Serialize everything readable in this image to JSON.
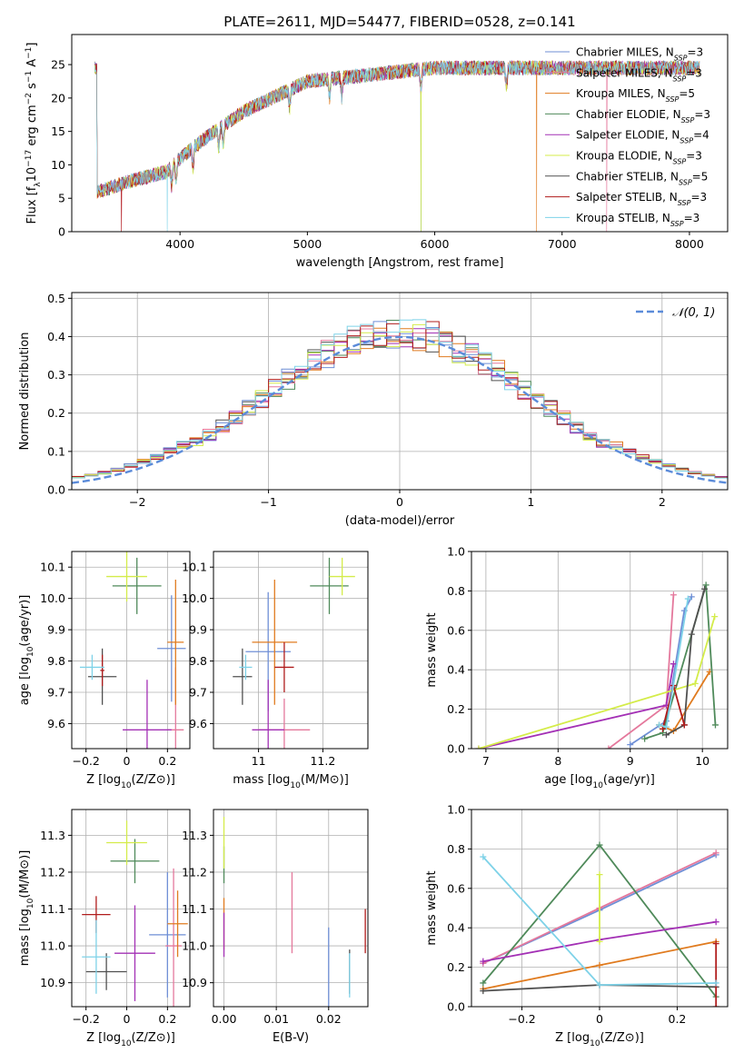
{
  "figure_title": "PLATE=2611, MJD=54477, FIBERID=0528, z=0.141",
  "models": [
    {
      "name": "Chabrier MILES",
      "nssp": "3",
      "color": "#6f8fd6"
    },
    {
      "name": "Salpeter MILES",
      "nssp": "3",
      "color": "#e4789c"
    },
    {
      "name": "Kroupa MILES",
      "nssp": "5",
      "color": "#e07b1f"
    },
    {
      "name": "Chabrier ELODIE",
      "nssp": "3",
      "color": "#4f8a5a"
    },
    {
      "name": "Salpeter ELODIE",
      "nssp": "4",
      "color": "#a330b5"
    },
    {
      "name": "Kroupa ELODIE",
      "nssp": "3",
      "color": "#d4ec4a"
    },
    {
      "name": "Chabrier STELIB",
      "nssp": "5",
      "color": "#505050"
    },
    {
      "name": "Salpeter STELIB",
      "nssp": "3",
      "color": "#b01c1c"
    },
    {
      "name": "Kroupa STELIB",
      "nssp": "3",
      "color": "#7ed2e8"
    }
  ],
  "chart_data": [
    {
      "id": "spectrum",
      "type": "line",
      "xlabel": "wavelength [Angstrom, rest frame]",
      "ylabel": "Flux [f_λ10^-17 erg cm^-2 s^-1 A^-1]",
      "xlim": [
        3150,
        8300
      ],
      "ylim": [
        0,
        29.5
      ],
      "xticks": [
        4000,
        5000,
        6000,
        7000,
        8000
      ],
      "yticks": [
        0,
        5,
        10,
        15,
        20,
        25
      ],
      "grid": false,
      "legend": "top-right",
      "continuum": {
        "x": [
          3350,
          3600,
          3900,
          4000,
          4200,
          4500,
          5000,
          5500,
          6000,
          6500,
          7000,
          7500,
          8000,
          8100
        ],
        "y": [
          6,
          7.5,
          9,
          11,
          14,
          18,
          22.5,
          23.5,
          24.5,
          24.5,
          24.5,
          24.5,
          24.5,
          24.5
        ]
      }
    },
    {
      "id": "residual-histogram",
      "type": "step",
      "xlabel": "(data-model)/error",
      "ylabel": "Normed distribution",
      "xlim": [
        -2.5,
        2.5
      ],
      "ylim": [
        0,
        0.515
      ],
      "xticks": [
        -2,
        -1,
        0,
        1,
        2
      ],
      "yticks": [
        0.0,
        0.1,
        0.2,
        0.3,
        0.4,
        0.5
      ],
      "grid": true,
      "legend": "top-right",
      "reference": {
        "label": "𝒩(0, 1)",
        "color": "#5b8bd9",
        "mean": 0,
        "sigma": 1
      },
      "bin_width": 0.1
    },
    {
      "id": "age-vs-Z",
      "type": "errorbar",
      "xlabel": "Z [log10(Z/Z⊙)]",
      "ylabel": "age  [log10(age/yr)]",
      "xlim": [
        -0.27,
        0.31
      ],
      "ylim": [
        9.52,
        10.15
      ],
      "xticks": [
        -0.2,
        0.0,
        0.2
      ],
      "yticks": [
        9.6,
        9.7,
        9.8,
        9.9,
        10.0,
        10.1
      ],
      "grid": true,
      "points": [
        {
          "m": 0,
          "x": 0.22,
          "y": 9.84,
          "xerr": 0.07,
          "yerr": 0.17
        },
        {
          "m": 1,
          "x": 0.24,
          "y": 9.58,
          "xerr": 0.04,
          "yerr": 0.2
        },
        {
          "m": 2,
          "x": 0.24,
          "y": 9.86,
          "xerr": 0.04,
          "yerr": 0.2
        },
        {
          "m": 3,
          "x": 0.05,
          "y": 10.04,
          "xerr": 0.12,
          "yerr": 0.09
        },
        {
          "m": 4,
          "x": 0.1,
          "y": 9.58,
          "xerr": 0.12,
          "yerr": 0.16
        },
        {
          "m": 5,
          "x": 0.0,
          "y": 10.07,
          "xerr": 0.1,
          "yerr": 0.08
        },
        {
          "m": 6,
          "x": -0.12,
          "y": 9.75,
          "xerr": 0.07,
          "yerr": 0.09
        },
        {
          "m": 7,
          "x": -0.12,
          "y": 9.77,
          "xerr": 0.01,
          "yerr": 0.05
        },
        {
          "m": 8,
          "x": -0.17,
          "y": 9.78,
          "xerr": 0.06,
          "yerr": 0.04
        }
      ]
    },
    {
      "id": "age-vs-mass",
      "type": "errorbar",
      "xlabel": "mass [log10(M/M⊙)]",
      "ylabel": "",
      "xlim": [
        10.86,
        11.34
      ],
      "ylim": [
        9.52,
        10.15
      ],
      "xticks": [
        11.0,
        11.2
      ],
      "yticks": [
        9.6,
        9.7,
        9.8,
        9.9,
        10.0,
        10.1
      ],
      "grid": true,
      "points": [
        {
          "m": 0,
          "x": 11.03,
          "y": 9.83,
          "xerr": 0.07,
          "yerr": 0.19
        },
        {
          "m": 1,
          "x": 11.08,
          "y": 9.58,
          "xerr": 0.08,
          "yerr": 0.1
        },
        {
          "m": 2,
          "x": 11.05,
          "y": 9.86,
          "xerr": 0.07,
          "yerr": 0.2
        },
        {
          "m": 3,
          "x": 11.22,
          "y": 10.04,
          "xerr": 0.06,
          "yerr": 0.09
        },
        {
          "m": 4,
          "x": 11.03,
          "y": 9.58,
          "xerr": 0.05,
          "yerr": 0.16
        },
        {
          "m": 5,
          "x": 11.26,
          "y": 10.07,
          "xerr": 0.04,
          "yerr": 0.06
        },
        {
          "m": 6,
          "x": 10.95,
          "y": 9.75,
          "xerr": 0.03,
          "yerr": 0.09
        },
        {
          "m": 7,
          "x": 11.08,
          "y": 9.78,
          "xerr": 0.03,
          "yerr": 0.08
        },
        {
          "m": 8,
          "x": 10.96,
          "y": 9.78,
          "xerr": 0.02,
          "yerr": 0.04
        }
      ]
    },
    {
      "id": "mass-weight-vs-age",
      "type": "line",
      "xlabel": "age  [log10(age/yr)]",
      "ylabel": "mass weight",
      "xlim": [
        6.8,
        10.35
      ],
      "ylim": [
        0,
        1.0
      ],
      "xticks": [
        7,
        8,
        9,
        10
      ],
      "yticks": [
        0.0,
        0.2,
        0.4,
        0.6,
        0.8,
        1.0
      ],
      "grid": true,
      "series": [
        {
          "m": 0,
          "x": [
            9.0,
            9.5,
            9.75,
            9.85
          ],
          "y": [
            0.02,
            0.14,
            0.7,
            0.77
          ]
        },
        {
          "m": 1,
          "x": [
            8.7,
            9.5,
            9.6
          ],
          "y": [
            0.0,
            0.22,
            0.78
          ]
        },
        {
          "m": 2,
          "x": [
            9.4,
            9.6,
            10.1
          ],
          "y": [
            0.12,
            0.09,
            0.39
          ]
        },
        {
          "m": 3,
          "x": [
            9.2,
            9.45,
            10.05,
            10.18
          ],
          "y": [
            0.05,
            0.08,
            0.83,
            0.12
          ]
        },
        {
          "m": 4,
          "x": [
            6.9,
            9.5,
            9.6
          ],
          "y": [
            0.0,
            0.22,
            0.43
          ]
        },
        {
          "m": 5,
          "x": [
            6.9,
            9.9,
            10.17
          ],
          "y": [
            0.0,
            0.33,
            0.67
          ]
        },
        {
          "m": 6,
          "x": [
            9.5,
            9.75,
            9.85,
            10.03
          ],
          "y": [
            0.07,
            0.12,
            0.58,
            0.81
          ]
        },
        {
          "m": 7,
          "x": [
            9.45,
            9.6,
            9.75
          ],
          "y": [
            0.1,
            0.32,
            0.12
          ]
        },
        {
          "m": 8,
          "x": [
            9.4,
            9.5,
            9.8
          ],
          "y": [
            0.12,
            0.11,
            0.76
          ]
        }
      ]
    },
    {
      "id": "mass-vs-Z",
      "type": "errorbar",
      "xlabel": "Z [log10(Z/Z⊙)]",
      "ylabel": "mass [log10(M/M⊙)]",
      "xlim": [
        -0.27,
        0.31
      ],
      "ylim": [
        10.835,
        11.37
      ],
      "xticks": [
        -0.2,
        0.0,
        0.2
      ],
      "yticks": [
        10.9,
        11.0,
        11.1,
        11.2,
        11.3
      ],
      "grid": true,
      "points": [
        {
          "m": 0,
          "x": 0.2,
          "y": 11.03,
          "xerr": 0.09,
          "yerr": 0.17
        },
        {
          "m": 1,
          "x": 0.23,
          "y": 11.0,
          "xerr": 0.04,
          "yerr": 0.21
        },
        {
          "m": 2,
          "x": 0.25,
          "y": 11.06,
          "xerr": 0.05,
          "yerr": 0.09
        },
        {
          "m": 3,
          "x": 0.04,
          "y": 11.23,
          "xerr": 0.12,
          "yerr": 0.06
        },
        {
          "m": 4,
          "x": 0.04,
          "y": 10.98,
          "xerr": 0.1,
          "yerr": 0.13
        },
        {
          "m": 5,
          "x": 0.0,
          "y": 11.28,
          "xerr": 0.1,
          "yerr": 0.06
        },
        {
          "m": 6,
          "x": -0.1,
          "y": 10.93,
          "xerr": 0.1,
          "yerr": 0.05
        },
        {
          "m": 7,
          "x": -0.15,
          "y": 11.085,
          "xerr": 0.07,
          "yerr": 0.05
        },
        {
          "m": 8,
          "x": -0.15,
          "y": 10.97,
          "xerr": 0.07,
          "yerr": 0.1
        }
      ]
    },
    {
      "id": "mass-vs-EBV",
      "type": "errorbar",
      "xlabel": "E(B-V)",
      "ylabel": "",
      "xlim": [
        -0.002,
        0.0275
      ],
      "ylim": [
        10.835,
        11.37
      ],
      "xticks": [
        0.0,
        0.01,
        0.02
      ],
      "xtick_labels": [
        "0.00",
        "0.01",
        "0.02"
      ],
      "yticks": [
        10.9,
        11.0,
        11.1,
        11.2,
        11.3
      ],
      "grid": true,
      "points": [
        {
          "m": 0,
          "x": 0.02,
          "y": 10.93,
          "xerr": 0,
          "yerr": 0.12
        },
        {
          "m": 1,
          "x": 0.013,
          "y": 11.09,
          "xerr": 0,
          "yerr": 0.11
        },
        {
          "m": 2,
          "x": 0.0,
          "y": 11.06,
          "xerr": 0,
          "yerr": 0.07
        },
        {
          "m": 3,
          "x": 0.0,
          "y": 11.22,
          "xerr": 0,
          "yerr": 0.05
        },
        {
          "m": 4,
          "x": 0.0,
          "y": 11.03,
          "xerr": 0,
          "yerr": 0.06
        },
        {
          "m": 5,
          "x": 0.0,
          "y": 11.28,
          "xerr": 0,
          "yerr": 0.07
        },
        {
          "m": 6,
          "x": 0.024,
          "y": 10.93,
          "xerr": 0,
          "yerr": 0.06
        },
        {
          "m": 7,
          "x": 0.027,
          "y": 11.04,
          "xerr": 0,
          "yerr": 0.06
        },
        {
          "m": 8,
          "x": 0.024,
          "y": 10.92,
          "xerr": 0,
          "yerr": 0.06
        }
      ]
    },
    {
      "id": "mass-weight-vs-Z",
      "type": "line",
      "xlabel": "Z [log10(Z/Z⊙)]",
      "ylabel": "mass weight",
      "xlim": [
        -0.33,
        0.33
      ],
      "ylim": [
        0,
        1.0
      ],
      "xticks": [
        -0.2,
        0.0,
        0.2
      ],
      "yticks": [
        0.0,
        0.2,
        0.4,
        0.6,
        0.8,
        1.0
      ],
      "grid": true,
      "series": [
        {
          "m": 0,
          "x": [
            -0.3,
            0.0,
            0.3
          ],
          "y": [
            0.22,
            0.49,
            0.77
          ]
        },
        {
          "m": 1,
          "x": [
            -0.3,
            0.0,
            0.3
          ],
          "y": [
            0.22,
            0.5,
            0.78
          ]
        },
        {
          "m": 2,
          "x": [
            -0.3,
            0.0,
            0.3
          ],
          "y": [
            0.09,
            0.21,
            0.33
          ]
        },
        {
          "m": 3,
          "x": [
            -0.3,
            0.0,
            0.3
          ],
          "y": [
            0.12,
            0.82,
            0.05
          ]
        },
        {
          "m": 4,
          "x": [
            -0.3,
            0.0,
            0.3
          ],
          "y": [
            0.23,
            0.34,
            0.43
          ]
        },
        {
          "m": 5,
          "x": [
            0.0,
            0.0
          ],
          "y": [
            0.33,
            0.67
          ]
        },
        {
          "m": 6,
          "x": [
            -0.3,
            0.0,
            0.3
          ],
          "y": [
            0.08,
            0.11,
            0.1
          ]
        },
        {
          "m": 7,
          "x": [
            0.3,
            0.3
          ],
          "y": [
            0.0,
            0.32
          ]
        },
        {
          "m": 8,
          "x": [
            -0.3,
            0.0,
            0.3
          ],
          "y": [
            0.76,
            0.11,
            0.12
          ]
        }
      ]
    }
  ]
}
